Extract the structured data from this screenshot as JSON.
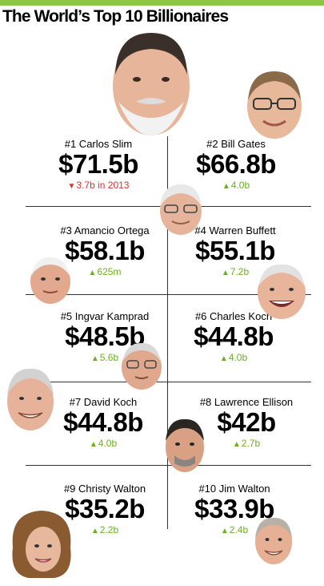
{
  "title": "The World’s Top 10 Billionaires",
  "colors": {
    "accent": "#8bc83f",
    "up": "#6ab023",
    "down": "#e0312f"
  },
  "entries": [
    {
      "rank_label": "#1 Carlos Slim",
      "amount": "$71.5b",
      "direction": "down",
      "change": "3.7b in 2013"
    },
    {
      "rank_label": "#2 Bill Gates",
      "amount": "$66.8b",
      "direction": "up",
      "change": "4.0b"
    },
    {
      "rank_label": "#3 Amancio Ortega",
      "amount": "$58.1b",
      "direction": "up",
      "change": "625m"
    },
    {
      "rank_label": "#4 Warren Buffett",
      "amount": "$55.1b",
      "direction": "up",
      "change": "7.2b"
    },
    {
      "rank_label": "#5 Ingvar Kamprad",
      "amount": "$48.5b",
      "direction": "up",
      "change": "5.6b"
    },
    {
      "rank_label": "#6 Charles Koch",
      "amount": "$44.8b",
      "direction": "up",
      "change": "4.0b"
    },
    {
      "rank_label": "#7 David Koch",
      "amount": "$44.8b",
      "direction": "up",
      "change": "4.0b"
    },
    {
      "rank_label": "#8 Lawrence Ellison",
      "amount": "$42b",
      "direction": "up",
      "change": "2.7b"
    },
    {
      "rank_label": "#9 Christy Walton",
      "amount": "$35.2b",
      "direction": "up",
      "change": "2.2b"
    },
    {
      "rank_label": "#10 Jim Walton",
      "amount": "$33.9b",
      "direction": "up",
      "change": "2.4b"
    }
  ],
  "icons": {
    "up": "triangle-up-icon",
    "down": "triangle-down-icon",
    "portrait": "face-portrait-icon"
  }
}
